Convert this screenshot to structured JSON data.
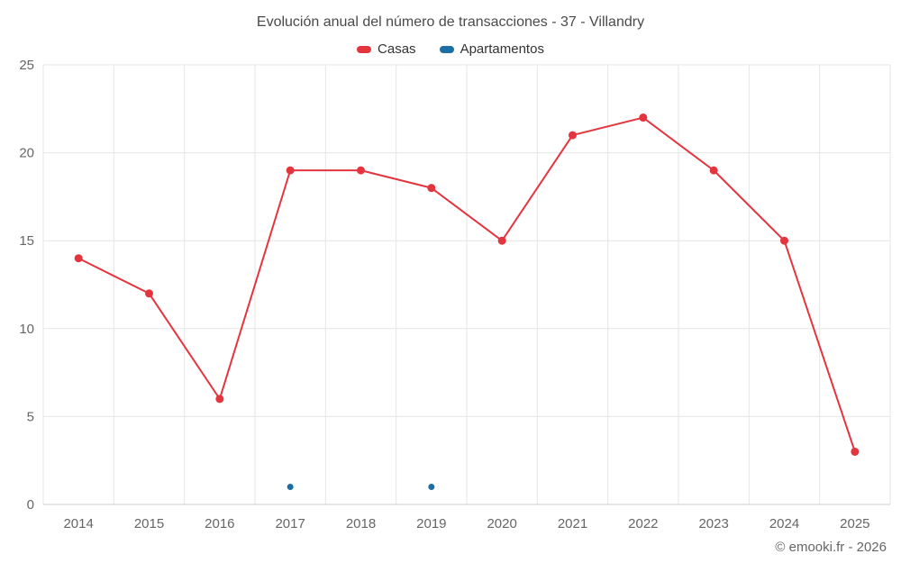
{
  "title": "Evolución anual del número de transacciones - 37 - Villandry",
  "footer": "© emooki.fr - 2026",
  "colors": {
    "grid": "#e6e6e6",
    "axis_line": "#cccccc",
    "axis_label": "#666666",
    "title": "#4a4a4a",
    "legend_text": "#333333"
  },
  "chart_data": {
    "type": "line",
    "title": "Evolución anual del número de transacciones - 37 - Villandry",
    "categories": [
      "2014",
      "2015",
      "2016",
      "2017",
      "2018",
      "2019",
      "2020",
      "2021",
      "2022",
      "2023",
      "2024",
      "2025"
    ],
    "series": [
      {
        "name": "Casas",
        "color": "#e4353f",
        "values": [
          14,
          12,
          6,
          19,
          19,
          18,
          15,
          21,
          22,
          19,
          15,
          3
        ]
      },
      {
        "name": "Apartamentos",
        "color": "#1c6ea4",
        "values": [
          null,
          null,
          null,
          1,
          null,
          1,
          null,
          null,
          null,
          null,
          null,
          null
        ]
      }
    ],
    "xlabel": "",
    "ylabel": "",
    "ylim": [
      0,
      25
    ],
    "yticks": [
      0,
      5,
      10,
      15,
      20,
      25
    ],
    "grid": true,
    "legend_position": "top"
  }
}
